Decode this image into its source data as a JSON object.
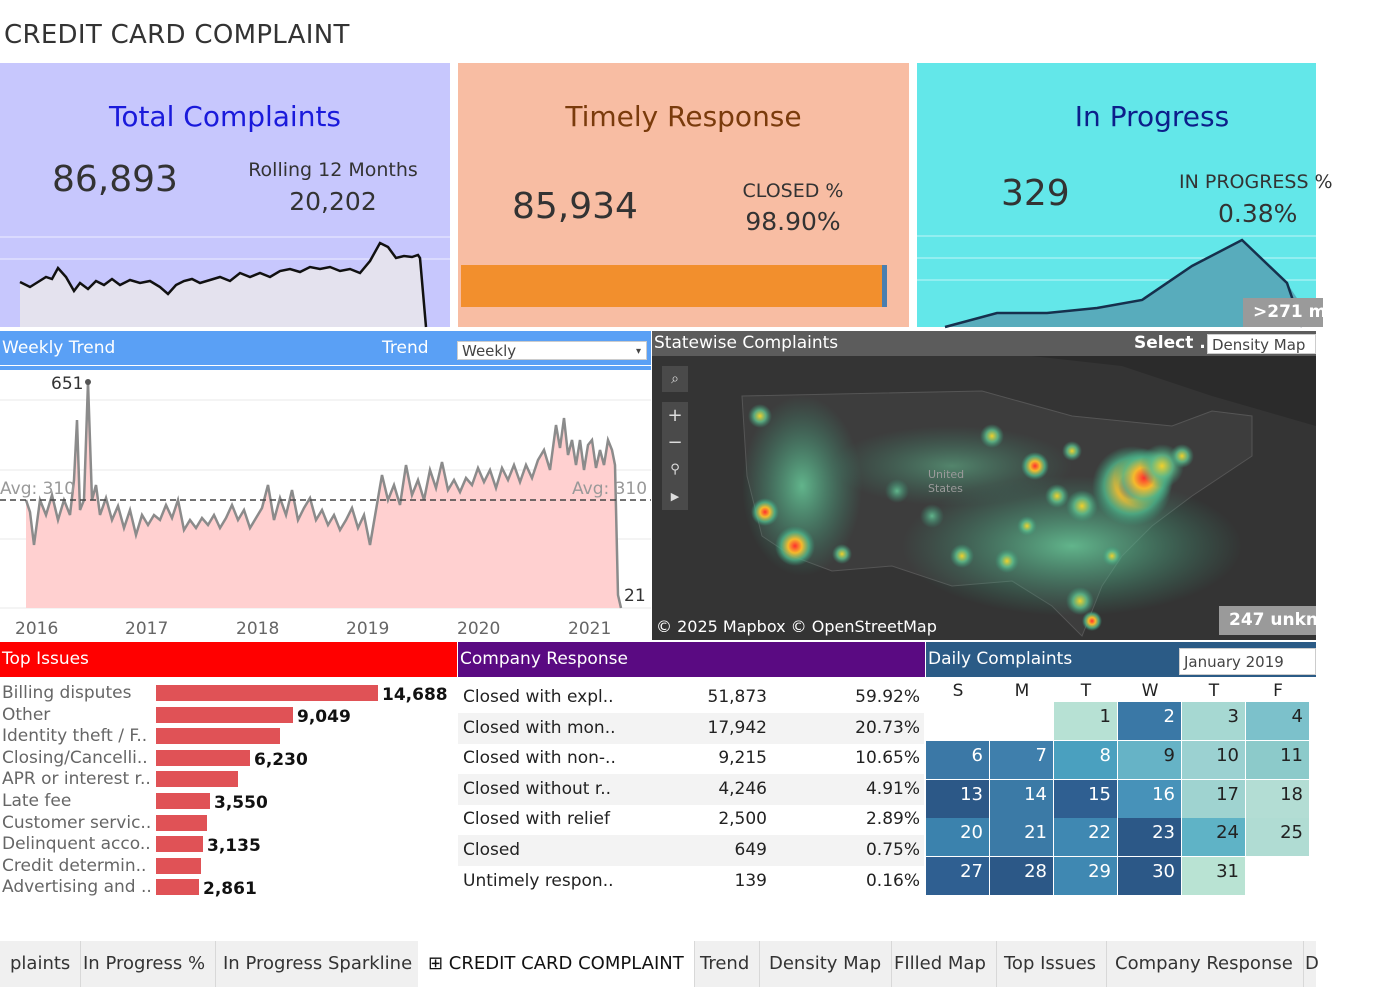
{
  "dashboard_title": "CREDIT CARD COMPLAINT",
  "kpi_total": {
    "title": "Total Complaints",
    "value": "86,893",
    "sub_label": "Rolling 12 Months",
    "sub_value": "20,202",
    "title_color": "#1a1adb"
  },
  "kpi_timely": {
    "title": "Timely Response",
    "value": "85,934",
    "sub_label": "CLOSED %",
    "sub_value": "98.90%",
    "closed_fraction": 0.989,
    "title_color": "#7a3b0c"
  },
  "kpi_progress": {
    "title": "In Progress",
    "value": "329",
    "sub_label": "IN PROGRESS %",
    "sub_value": "0.38%",
    "badge": ">271 m",
    "title_color": "#0c1f8a"
  },
  "weekly_trend": {
    "header": "Weekly Trend",
    "trend_label": "Trend",
    "dropdown_value": "Weekly",
    "peak_label": "651",
    "last_label": "21",
    "avg_left": "Avg: 310",
    "avg_right": "Avg: 310",
    "years": [
      "2016",
      "2017",
      "2018",
      "2019",
      "2020",
      "2021"
    ]
  },
  "statewise": {
    "header": "Statewise Complaints",
    "select_label": "Select ..",
    "dropdown_value": "Density Map",
    "attribution": "© 2025 Mapbox © OpenStreetMap",
    "unknown_badge": "247 unkn",
    "map_label_1": "United",
    "map_label_2": "States"
  },
  "top_issues": {
    "header": "Top Issues",
    "items": [
      {
        "label": "Billing disputes",
        "value": 14688,
        "value_label": "14,688"
      },
      {
        "label": "Other",
        "value": 9049,
        "value_label": "9,049"
      },
      {
        "label": "Identity theft / F..",
        "value": 8200,
        "value_label": ""
      },
      {
        "label": "Closing/Cancelli..",
        "value": 6230,
        "value_label": "6,230"
      },
      {
        "label": "APR or interest r..",
        "value": 5400,
        "value_label": ""
      },
      {
        "label": "Late fee",
        "value": 3550,
        "value_label": "3,550"
      },
      {
        "label": "Customer servic..",
        "value": 3350,
        "value_label": ""
      },
      {
        "label": "Delinquent acco..",
        "value": 3135,
        "value_label": "3,135"
      },
      {
        "label": "Credit determin..",
        "value": 2950,
        "value_label": ""
      },
      {
        "label": "Advertising and ..",
        "value": 2861,
        "value_label": "2,861"
      }
    ]
  },
  "company_response": {
    "header": "Company Response",
    "rows": [
      {
        "label": "Closed with expl..",
        "count": "51,873",
        "pct": "59.92%"
      },
      {
        "label": "Closed with mon..",
        "count": "17,942",
        "pct": "20.73%"
      },
      {
        "label": "Closed with non-..",
        "count": "9,215",
        "pct": "10.65%"
      },
      {
        "label": "Closed without r..",
        "count": "4,246",
        "pct": "4.91%"
      },
      {
        "label": "Closed with relief",
        "count": "2,500",
        "pct": "2.89%"
      },
      {
        "label": "Closed",
        "count": "649",
        "pct": "0.75%"
      },
      {
        "label": "Untimely respon..",
        "count": "139",
        "pct": "0.16%"
      }
    ]
  },
  "daily_complaints": {
    "header": "Daily Complaints",
    "dropdown_value": "January 2019",
    "weekdays": [
      "S",
      "M",
      "T",
      "W",
      "T",
      "F"
    ],
    "cells": [
      {
        "day": "1",
        "week": 0,
        "col": 2,
        "color": "#b7e1d4"
      },
      {
        "day": "2",
        "week": 0,
        "col": 3,
        "color": "#3a78a6"
      },
      {
        "day": "3",
        "week": 0,
        "col": 4,
        "color": "#a6d8d2"
      },
      {
        "day": "4",
        "week": 0,
        "col": 5,
        "color": "#7cc1cb"
      },
      {
        "day": "6",
        "week": 1,
        "col": 0,
        "color": "#3b78a6"
      },
      {
        "day": "7",
        "week": 1,
        "col": 1,
        "color": "#3f7fac"
      },
      {
        "day": "8",
        "week": 1,
        "col": 2,
        "color": "#4aa0bf"
      },
      {
        "day": "9",
        "week": 1,
        "col": 3,
        "color": "#66b3c6"
      },
      {
        "day": "10",
        "week": 1,
        "col": 4,
        "color": "#9bd1d1"
      },
      {
        "day": "11",
        "week": 1,
        "col": 5,
        "color": "#8ccaca"
      },
      {
        "day": "13",
        "week": 2,
        "col": 0,
        "color": "#2c5887"
      },
      {
        "day": "14",
        "week": 2,
        "col": 1,
        "color": "#3b7aa6"
      },
      {
        "day": "15",
        "week": 2,
        "col": 2,
        "color": "#2f5f91"
      },
      {
        "day": "16",
        "week": 2,
        "col": 3,
        "color": "#4792b9"
      },
      {
        "day": "17",
        "week": 2,
        "col": 4,
        "color": "#9fd3d0"
      },
      {
        "day": "18",
        "week": 2,
        "col": 5,
        "color": "#b3ddd4"
      },
      {
        "day": "20",
        "week": 3,
        "col": 0,
        "color": "#3b82ad"
      },
      {
        "day": "21",
        "week": 3,
        "col": 1,
        "color": "#3b7aa6"
      },
      {
        "day": "22",
        "week": 3,
        "col": 2,
        "color": "#3f88b2"
      },
      {
        "day": "23",
        "week": 3,
        "col": 3,
        "color": "#2c5887"
      },
      {
        "day": "24",
        "week": 3,
        "col": 4,
        "color": "#5fb3c6"
      },
      {
        "day": "25",
        "week": 3,
        "col": 5,
        "color": "#b0dcd3"
      },
      {
        "day": "27",
        "week": 4,
        "col": 0,
        "color": "#2f5f91"
      },
      {
        "day": "28",
        "week": 4,
        "col": 1,
        "color": "#2c5887"
      },
      {
        "day": "29",
        "week": 4,
        "col": 2,
        "color": "#3f88b2"
      },
      {
        "day": "30",
        "week": 4,
        "col": 3,
        "color": "#2c5887"
      },
      {
        "day": "31",
        "week": 4,
        "col": 4,
        "color": "#b9e3d3"
      }
    ]
  },
  "tabs": [
    {
      "label": "plaints",
      "active": false
    },
    {
      "label": "In Progress %",
      "active": false
    },
    {
      "label": "In Progress Sparkline",
      "active": false
    },
    {
      "label": "⊞ CREDIT CARD COMPLAINT",
      "active": true
    },
    {
      "label": "Trend",
      "active": false
    },
    {
      "label": "Density Map",
      "active": false
    },
    {
      "label": "FIlled Map",
      "active": false
    },
    {
      "label": "Top Issues",
      "active": false
    },
    {
      "label": "Company Response",
      "active": false
    },
    {
      "label": "D",
      "active": false
    }
  ]
}
